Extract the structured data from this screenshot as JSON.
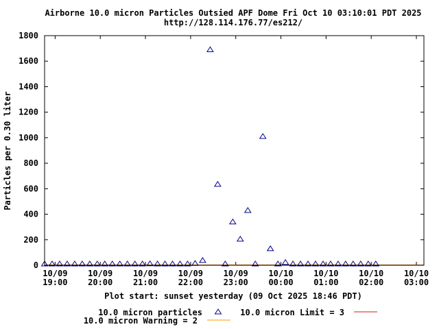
{
  "chart_data": {
    "type": "scatter",
    "title": "Airborne 10.0 micron Particles Outsied APF Dome Fri Oct 10 03:10:01 PDT 2025",
    "subtitle": "http://128.114.176.77/es212/",
    "xlabel": "Plot start: sunset yesterday (09 Oct 2025 18:46 PDT)",
    "ylabel": "Particles per 0.30 liter",
    "ylim": [
      0,
      1800
    ],
    "xlim": [
      "2025-10-09 18:46",
      "2025-10-10 03:10"
    ],
    "yticks": [
      0,
      200,
      400,
      600,
      800,
      1000,
      1200,
      1400,
      1600,
      1800
    ],
    "xticks": [
      {
        "date": "10/09",
        "time": "19:00"
      },
      {
        "date": "10/09",
        "time": "20:00"
      },
      {
        "date": "10/09",
        "time": "21:00"
      },
      {
        "date": "10/09",
        "time": "22:00"
      },
      {
        "date": "10/09",
        "time": "23:00"
      },
      {
        "date": "10/10",
        "time": "00:00"
      },
      {
        "date": "10/10",
        "time": "01:00"
      },
      {
        "date": "10/10",
        "time": "02:00"
      },
      {
        "date": "10/10",
        "time": "03:00"
      }
    ],
    "grid": false,
    "legend_position": "bottom",
    "series": [
      {
        "name": "10.0 micron particles",
        "marker": "triangle",
        "color": "#00008b",
        "points": [
          {
            "x": "2025-10-09 18:46",
            "y": 2
          },
          {
            "x": "2025-10-09 18:56",
            "y": 2
          },
          {
            "x": "2025-10-09 19:06",
            "y": 2
          },
          {
            "x": "2025-10-09 19:16",
            "y": 2
          },
          {
            "x": "2025-10-09 19:26",
            "y": 2
          },
          {
            "x": "2025-10-09 19:36",
            "y": 2
          },
          {
            "x": "2025-10-09 19:46",
            "y": 2
          },
          {
            "x": "2025-10-09 19:56",
            "y": 2
          },
          {
            "x": "2025-10-09 20:06",
            "y": 2
          },
          {
            "x": "2025-10-09 20:16",
            "y": 2
          },
          {
            "x": "2025-10-09 20:26",
            "y": 2
          },
          {
            "x": "2025-10-09 20:36",
            "y": 2
          },
          {
            "x": "2025-10-09 20:46",
            "y": 10
          },
          {
            "x": "2025-10-09 20:56",
            "y": 4
          },
          {
            "x": "2025-10-09 21:06",
            "y": 12
          },
          {
            "x": "2025-10-09 21:16",
            "y": 8
          },
          {
            "x": "2025-10-09 21:26",
            "y": 2
          },
          {
            "x": "2025-10-09 21:36",
            "y": 2
          },
          {
            "x": "2025-10-09 21:46",
            "y": 2
          },
          {
            "x": "2025-10-09 21:56",
            "y": 2
          },
          {
            "x": "2025-10-09 22:06",
            "y": 15
          },
          {
            "x": "2025-10-09 22:16",
            "y": 38
          },
          {
            "x": "2025-10-09 22:26",
            "y": 1690
          },
          {
            "x": "2025-10-09 22:36",
            "y": 635
          },
          {
            "x": "2025-10-09 22:46",
            "y": 8
          },
          {
            "x": "2025-10-09 22:56",
            "y": 340
          },
          {
            "x": "2025-10-09 23:06",
            "y": 205
          },
          {
            "x": "2025-10-09 23:16",
            "y": 430
          },
          {
            "x": "2025-10-09 23:26",
            "y": 6
          },
          {
            "x": "2025-10-09 23:36",
            "y": 1010
          },
          {
            "x": "2025-10-09 23:46",
            "y": 130
          },
          {
            "x": "2025-10-09 23:56",
            "y": 4
          },
          {
            "x": "2025-10-10 00:06",
            "y": 22
          },
          {
            "x": "2025-10-10 00:16",
            "y": 2
          },
          {
            "x": "2025-10-10 00:26",
            "y": 2
          },
          {
            "x": "2025-10-10 00:36",
            "y": 2
          },
          {
            "x": "2025-10-10 00:46",
            "y": 2
          },
          {
            "x": "2025-10-10 00:56",
            "y": 2
          },
          {
            "x": "2025-10-10 01:06",
            "y": 2
          },
          {
            "x": "2025-10-10 01:16",
            "y": 2
          },
          {
            "x": "2025-10-10 01:26",
            "y": 6
          },
          {
            "x": "2025-10-10 01:36",
            "y": 2
          },
          {
            "x": "2025-10-10 01:46",
            "y": 2
          },
          {
            "x": "2025-10-10 01:56",
            "y": 2
          },
          {
            "x": "2025-10-10 02:06",
            "y": 2
          }
        ]
      },
      {
        "name": "10.0 micron Limit = 3",
        "type": "hline",
        "y": 3,
        "color": "#cc2200"
      },
      {
        "name": "10.0 micron Warning = 2",
        "type": "hline",
        "y": 2,
        "color": "#ff9900"
      }
    ]
  }
}
